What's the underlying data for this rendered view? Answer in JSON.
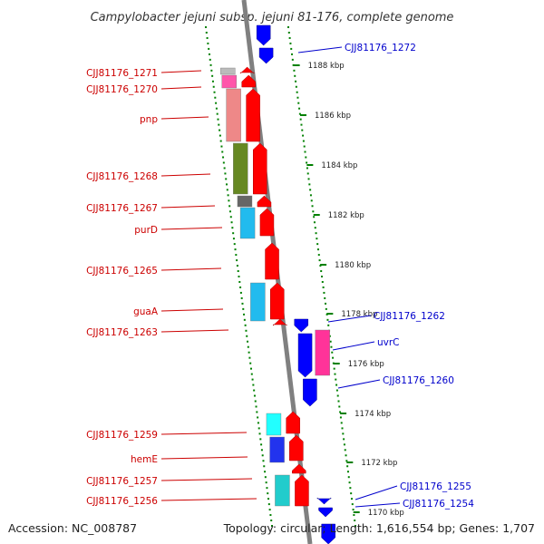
{
  "title": "Campylobacter jejuni subsp. jejuni 81-176, complete genome",
  "footer": {
    "accession": "Accession: NC_008787",
    "topology": "Topology: circular; Length: 1,616,554 bp; Genes: 1,707"
  },
  "colors": {
    "forward": "#ff0000",
    "reverse": "#0000ff",
    "label_forward": "#cc0000",
    "label_reverse": "#0000cc",
    "backbone": "#808080",
    "ticks": "#008000"
  },
  "scale_labels": [
    "1188 kbp",
    "1186 kbp",
    "1184 kbp",
    "1182 kbp",
    "1180 kbp",
    "1178 kbp",
    "1176 kbp",
    "1174 kbp",
    "1172 kbp",
    "1170 kbp"
  ],
  "forward_labels": [
    "CJJ81176_1271",
    "CJJ81176_1270",
    "pnp",
    "CJJ81176_1268",
    "CJJ81176_1267",
    "purD",
    "CJJ81176_1265",
    "guaA",
    "CJJ81176_1263",
    "CJJ81176_1259",
    "hemE",
    "CJJ81176_1257",
    "CJJ81176_1256"
  ],
  "reverse_labels": [
    "CJJ81176_1272",
    "CJJ81176_1262",
    "uvrC",
    "CJJ81176_1260",
    "CJJ81176_1255",
    "CJJ81176_1254"
  ],
  "cog_colors": [
    "#bbbbbb",
    "#ff55aa",
    "#ee8888",
    "#668822",
    "#666666",
    "#22bbee",
    "#22bbee",
    "#22ffff",
    "#2233ee",
    "#22cccc",
    "#ff3399"
  ]
}
